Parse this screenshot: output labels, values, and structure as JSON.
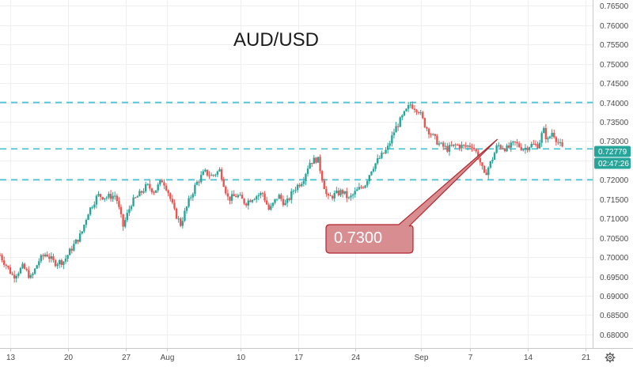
{
  "chart_data": {
    "type": "candlestick",
    "title": "AUD/USD",
    "xlabel": "",
    "ylabel": "",
    "ylim": [
      0.6765,
      0.7665
    ],
    "grid": true,
    "y_ticks": [
      0.68,
      0.685,
      0.69,
      0.695,
      0.7,
      0.705,
      0.71,
      0.715,
      0.72,
      0.725,
      0.73,
      0.735,
      0.74,
      0.745,
      0.75,
      0.755,
      0.76,
      0.765
    ],
    "y_tick_labels": [
      "0.68000",
      "0.68500",
      "0.69000",
      "0.69500",
      "0.70000",
      "0.70500",
      "0.71000",
      "0.71500",
      "0.72000",
      "0.72500",
      "0.73000",
      "0.73500",
      "0.74000",
      "0.74500",
      "0.75000",
      "0.75500",
      "0.76000",
      "0.76500"
    ],
    "x_ticks": [
      "13",
      "20",
      "27",
      "Aug",
      "10",
      "17",
      "24",
      "Sep",
      "7",
      "14",
      "21"
    ],
    "x_tick_days": [
      0,
      7,
      14,
      19,
      28,
      35,
      42,
      50,
      56,
      63,
      70
    ],
    "x_range_days": [
      -1.3,
      70.9
    ],
    "horizontal_levels": [
      0.74,
      0.728,
      0.72
    ],
    "current_price": "0.72779",
    "current_price_value": 0.7278,
    "countdown": "02:47:26",
    "annotation": {
      "text": "0.7300",
      "points_to": {
        "day": 59.3,
        "price": 0.7305
      }
    },
    "path": [
      [
        -1.3,
        0.7005
      ],
      [
        0.3,
        0.695
      ],
      [
        1.5,
        0.6975
      ],
      [
        2.5,
        0.6945
      ],
      [
        3.4,
        0.699
      ],
      [
        4.3,
        0.701
      ],
      [
        5.3,
        0.6985
      ],
      [
        6.5,
        0.699
      ],
      [
        7.5,
        0.7025
      ],
      [
        8.6,
        0.706
      ],
      [
        9.4,
        0.7115
      ],
      [
        10.6,
        0.716
      ],
      [
        11.6,
        0.7155
      ],
      [
        12.8,
        0.716
      ],
      [
        13.7,
        0.708
      ],
      [
        14.7,
        0.714
      ],
      [
        15.6,
        0.716
      ],
      [
        16.6,
        0.7185
      ],
      [
        17.5,
        0.717
      ],
      [
        18.5,
        0.72
      ],
      [
        19.1,
        0.7175
      ],
      [
        19.9,
        0.712
      ],
      [
        20.7,
        0.7085
      ],
      [
        21.8,
        0.715
      ],
      [
        22.6,
        0.719
      ],
      [
        23.6,
        0.722
      ],
      [
        24.5,
        0.721
      ],
      [
        25.5,
        0.7225
      ],
      [
        26.5,
        0.715
      ],
      [
        27.6,
        0.716
      ],
      [
        28.6,
        0.714
      ],
      [
        29.5,
        0.7155
      ],
      [
        30.7,
        0.7165
      ],
      [
        31.5,
        0.712
      ],
      [
        32.6,
        0.716
      ],
      [
        33.5,
        0.7135
      ],
      [
        34.5,
        0.7175
      ],
      [
        35.6,
        0.72
      ],
      [
        36.4,
        0.7245
      ],
      [
        37.4,
        0.7255
      ],
      [
        38.0,
        0.72
      ],
      [
        38.6,
        0.715
      ],
      [
        39.3,
        0.716
      ],
      [
        40.4,
        0.717
      ],
      [
        41.2,
        0.715
      ],
      [
        42.1,
        0.717
      ],
      [
        43.2,
        0.719
      ],
      [
        44.0,
        0.723
      ],
      [
        44.9,
        0.7255
      ],
      [
        45.9,
        0.728
      ],
      [
        46.8,
        0.733
      ],
      [
        47.8,
        0.7365
      ],
      [
        48.7,
        0.7395
      ],
      [
        49.7,
        0.738
      ],
      [
        50.5,
        0.734
      ],
      [
        51.5,
        0.731
      ],
      [
        52.3,
        0.729
      ],
      [
        53.2,
        0.728
      ],
      [
        54.3,
        0.729
      ],
      [
        55.3,
        0.7285
      ],
      [
        56.2,
        0.729
      ],
      [
        57.0,
        0.726
      ],
      [
        57.7,
        0.721
      ],
      [
        58.6,
        0.725
      ],
      [
        59.3,
        0.729
      ],
      [
        60.5,
        0.728
      ],
      [
        61.4,
        0.7295
      ],
      [
        62.5,
        0.728
      ],
      [
        63.3,
        0.729
      ],
      [
        64.3,
        0.729
      ],
      [
        64.9,
        0.733
      ],
      [
        65.4,
        0.73
      ],
      [
        66.0,
        0.7325
      ],
      [
        66.6,
        0.73
      ],
      [
        67.3,
        0.7278
      ]
    ]
  }
}
